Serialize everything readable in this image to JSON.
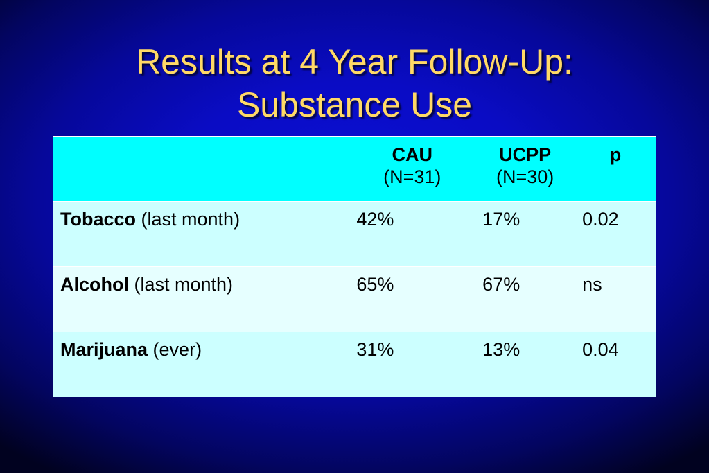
{
  "slide": {
    "title_line1": "Results at 4 Year Follow-Up:",
    "title_line2": "Substance Use"
  },
  "table": {
    "headers": [
      {
        "label": "",
        "sub": ""
      },
      {
        "label": "CAU",
        "sub": "(N=31)"
      },
      {
        "label": "UCPP",
        "sub": "(N=30)"
      },
      {
        "label": "p",
        "sub": ""
      }
    ],
    "rows": [
      {
        "substance": "Tobacco",
        "qualifier": " (last month)",
        "cau": "42%",
        "ucpp": "17%",
        "p": "0.02"
      },
      {
        "substance": "Alcohol",
        "qualifier": " (last month)",
        "cau": "65%",
        "ucpp": "67%",
        "p": "ns"
      },
      {
        "substance": "Marijuana",
        "qualifier": " (ever)",
        "cau": "31%",
        "ucpp": "13%",
        "p": "0.04"
      }
    ]
  },
  "colors": {
    "title": "#ffd966",
    "header_bg": "#00ffff",
    "row_bg_a": "#ccffff",
    "row_bg_b": "#e6ffff",
    "background": "#0a0cc4"
  }
}
